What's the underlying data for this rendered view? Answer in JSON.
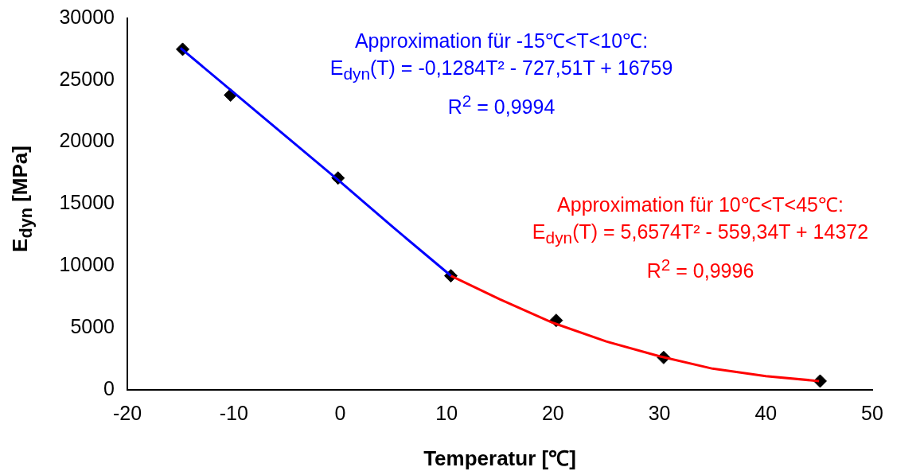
{
  "chart_data": {
    "type": "scatter",
    "xlabel": "Temperatur [℃]",
    "ylabel": "E$_{dyn}$ [MPa]",
    "xlim": [
      -20,
      50
    ],
    "xticks": [
      -20,
      -10,
      0,
      10,
      20,
      30,
      40,
      50
    ],
    "ylim": [
      0,
      30000
    ],
    "yticks": [
      0,
      5000,
      10000,
      15000,
      20000,
      25000,
      30000
    ],
    "grid": false,
    "legend": false,
    "marker": "diamond",
    "series": [
      {
        "color": "#000000",
        "x": [
          -14.8,
          -10.3,
          -0.2,
          10.4,
          20.3,
          30.4,
          45.1
        ],
        "values": [
          27500,
          23800,
          17100,
          9200,
          5600,
          2600,
          700
        ]
      },
      {
        "type": "line",
        "marker": "none",
        "color": "#0000ff",
        "x": [
          -15,
          -10,
          -5,
          0,
          5,
          10,
          10.4
        ],
        "values": [
          27600,
          24000,
          20400,
          16800,
          13100,
          9500,
          9200
        ]
      },
      {
        "type": "line",
        "marker": "none",
        "color": "#ff0000",
        "x": [
          10.4,
          15,
          20,
          25,
          30,
          35,
          40,
          45
        ],
        "values": [
          9200,
          7300,
          5400,
          3900,
          2700,
          1700,
          1100,
          700
        ]
      }
    ],
    "annotations": [
      "Approximation für -15℃<T<10℃:\nE$_{dyn}$(T) = -0,1284T² - 727,51T + 16759\nR$^{2}$ = 0,9994",
      "Approximation für 10℃<T<45℃:\nE$_{dyn}$(T) = 5,6574T² - 559,34T + 14372\nR$^{2}$ = 0,9996"
    ]
  }
}
